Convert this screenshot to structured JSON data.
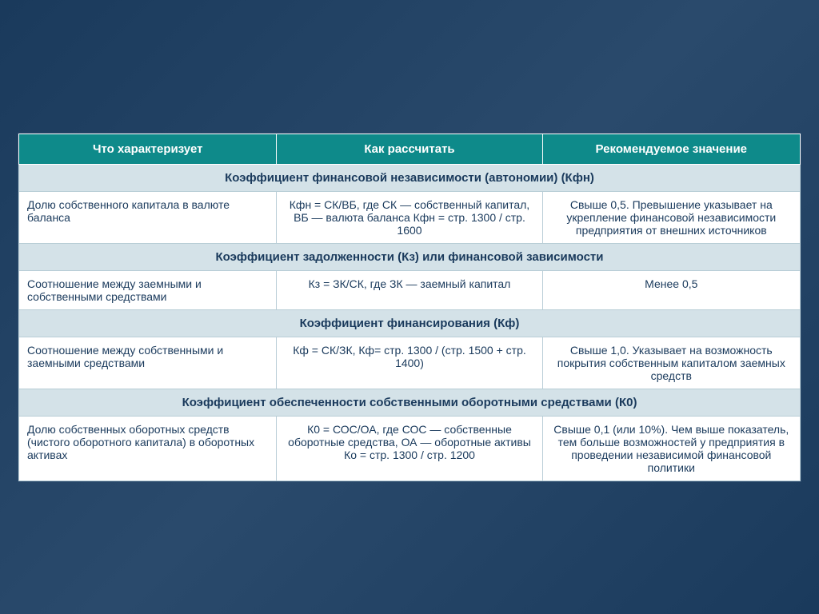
{
  "header": {
    "col1": "Что характеризует",
    "col2": "Как рассчитать",
    "col3": "Рекомендуемое значение"
  },
  "sections": [
    {
      "title": "Коэффициент финансовой независимости (автономии) (Кфн)",
      "row": {
        "c1": "Долю собственного капитала в валюте баланса",
        "c2": "Кфн = СК/ВБ, где СК — собственный капитал, ВБ — валюта баланса Кфн = стр. 1300 / стр. 1600",
        "c3": "Свыше 0,5. Превышение указывает на укрепление финансовой независимости предприятия от внешних источников"
      }
    },
    {
      "title": "Коэффициент задолженности (Кз) или финансовой зависимости",
      "row": {
        "c1": "Соотношение между заемными и собственными средствами",
        "c2": "Кз = ЗК/СК, где ЗК — заемный капитал",
        "c3": "Менее 0,5"
      }
    },
    {
      "title": "Коэффициент финансирования (Кф)",
      "row": {
        "c1": "Соотношение между собственными и заемными средствами",
        "c2": "Кф = СК/ЗК, Кф= стр. 1300 / (стр. 1500 + стр. 1400)",
        "c3": "Свыше 1,0. Указывает на возможность покрытия собственным капиталом заемных средств"
      }
    },
    {
      "title": "Коэффициент обеспеченности собственными оборотными средствами (К0)",
      "row": {
        "c1": "Долю собственных оборотных средств (чистого оборотного капитала) в оборотных активах",
        "c2": "К0 = СОС/ОА, где СОС — собственные оборотные средства, ОА — оборотные активы Ко = стр. 1300 / стр. 1200",
        "c3": "Свыше 0,1 (или 10%). Чем выше показатель, тем больше возможностей у предприятия в проведении независимой финансовой политики"
      }
    }
  ],
  "style": {
    "header_bg": "#0e8a8a",
    "header_text": "#ffffff",
    "section_bg": "#d4e2e8",
    "cell_text": "#1a3a5c",
    "border": "#b8cdd6",
    "page_bg": "#1a3a5c"
  }
}
